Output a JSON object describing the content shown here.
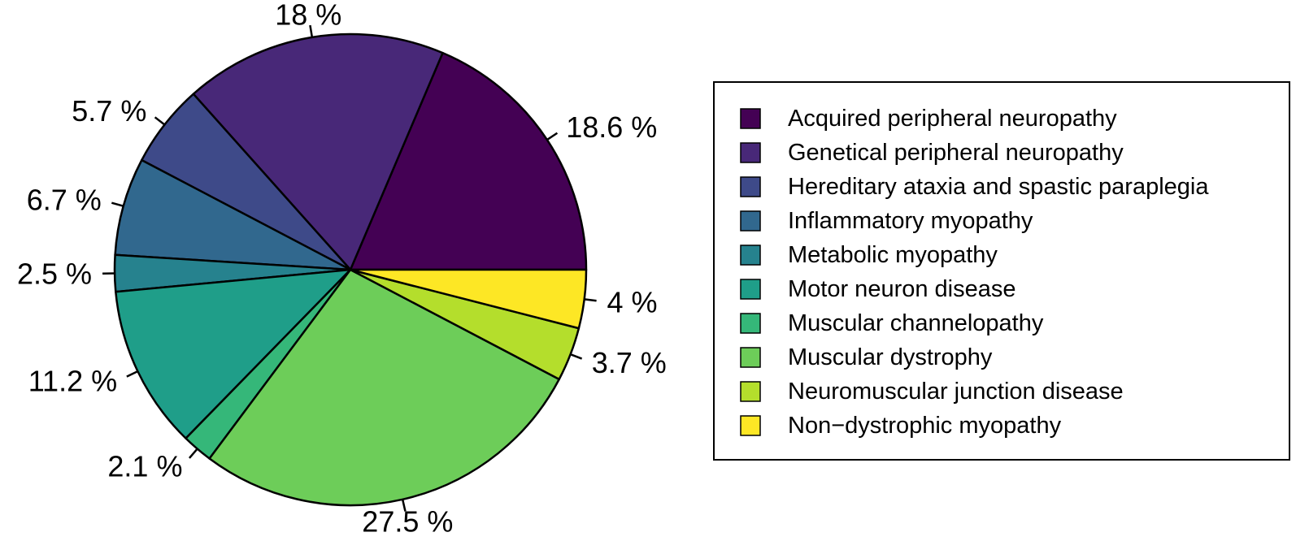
{
  "chart_data": {
    "type": "pie",
    "title": "",
    "start_angle_deg": 0,
    "direction": "counterclockwise",
    "legend_position": "right",
    "slices": [
      {
        "label": "Acquired peripheral neuropathy",
        "value": 18.6,
        "display": "18.6 %",
        "color": "#440154"
      },
      {
        "label": "Genetical peripheral neuropathy",
        "value": 18.0,
        "display": "18 %",
        "color": "#482878"
      },
      {
        "label": "Hereditary ataxia and spastic paraplegia",
        "value": 5.7,
        "display": "5.7 %",
        "color": "#3E4A89"
      },
      {
        "label": "Inflammatory myopathy",
        "value": 6.7,
        "display": "6.7 %",
        "color": "#31688E"
      },
      {
        "label": "Metabolic myopathy",
        "value": 2.5,
        "display": "2.5 %",
        "color": "#26828E"
      },
      {
        "label": "Motor neuron disease",
        "value": 11.2,
        "display": "11.2 %",
        "color": "#1F9E89"
      },
      {
        "label": "Muscular channelopathy",
        "value": 2.1,
        "display": "2.1 %",
        "color": "#35B779"
      },
      {
        "label": "Muscular dystrophy",
        "value": 27.5,
        "display": "27.5 %",
        "color": "#6DCD59"
      },
      {
        "label": "Neuromuscular junction disease",
        "value": 3.7,
        "display": "3.7 %",
        "color": "#B4DE2C"
      },
      {
        "label": "Non−dystrophic myopathy",
        "value": 4.0,
        "display": "4 %",
        "color": "#FDE725"
      }
    ]
  }
}
